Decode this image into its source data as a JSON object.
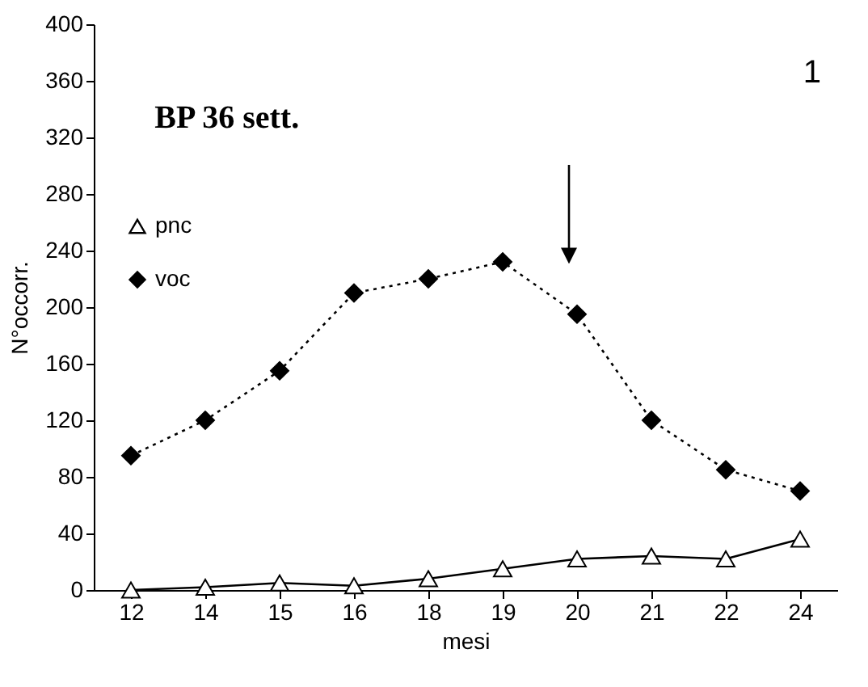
{
  "chart_data": {
    "type": "line",
    "title": "BP 36 sett.",
    "xlabel": "mesi",
    "ylabel": "N°occorr.",
    "categories": [
      "12",
      "14",
      "15",
      "16",
      "18",
      "19",
      "20",
      "21",
      "22",
      "24"
    ],
    "series": [
      {
        "name": "pnc",
        "color": "#000000",
        "marker": "triangle",
        "line_style": "solid",
        "values": [
          0,
          2,
          5,
          3,
          8,
          15,
          22,
          24,
          22,
          36
        ]
      },
      {
        "name": "voc",
        "color": "#000000",
        "marker": "diamond",
        "line_style": "dotted",
        "values": [
          95,
          120,
          155,
          210,
          220,
          232,
          195,
          120,
          85,
          70
        ]
      }
    ],
    "ylim": [
      0,
      400
    ],
    "yticks": [
      0,
      40,
      80,
      120,
      160,
      200,
      240,
      280,
      320,
      360,
      400
    ],
    "annotations": [
      "1"
    ],
    "legend": "top left",
    "grid": false
  }
}
